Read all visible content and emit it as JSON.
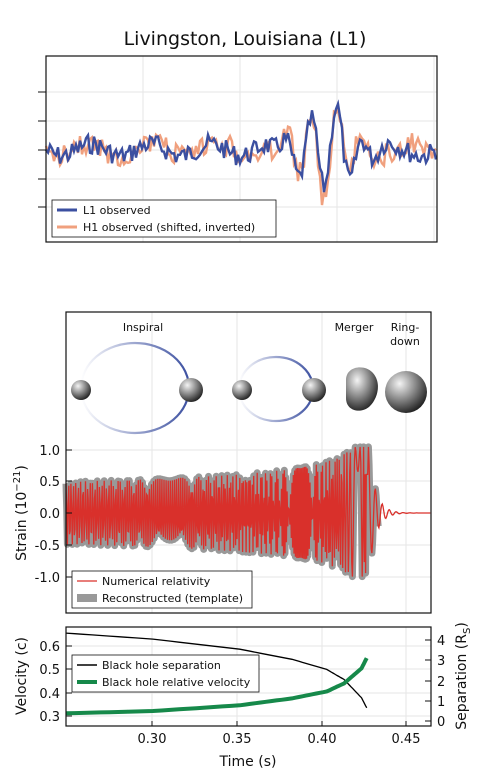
{
  "top_panel": {
    "title": "Livingston, Louisiana (L1)",
    "legend": [
      "L1 observed",
      "H1 observed (shifted, inverted)"
    ]
  },
  "middle_panel": {
    "phase_labels": {
      "inspiral": "Inspiral",
      "merger": "Merger",
      "ringdown_1": "Ring-",
      "ringdown_2": "down"
    },
    "ylabel_main": "Strain (10",
    "ylabel_exp": "−21",
    "ylabel_end": ")",
    "yticks": [
      "1.0",
      "0.5",
      "0.0",
      "-0.5",
      "-1.0"
    ],
    "legend": [
      "Numerical relativity",
      "Reconstructed (template)"
    ]
  },
  "bottom_panel": {
    "ylabel_left": "Velocity (c)",
    "ylabel_right_main": "Separation (R",
    "ylabel_right_sub": "S",
    "ylabel_right_end": ")",
    "yticks_left": [
      "0.6",
      "0.5",
      "0.4",
      "0.3"
    ],
    "yticks_right": [
      "4",
      "3",
      "2",
      "1",
      "0"
    ],
    "xticks": [
      "0.30",
      "0.35",
      "0.40",
      "0.45"
    ],
    "xlabel": "Time (s)",
    "legend": [
      "Black hole separation",
      "Black hole relative velocity"
    ]
  },
  "colors": {
    "l1": "#3b4fa0",
    "h1": "#f0a07e",
    "nr": "#d9302b",
    "template": "#999999",
    "velocity": "#16894a",
    "separation": "#000000"
  },
  "chart_data": [
    {
      "type": "line",
      "title": "Livingston, Louisiana (L1)",
      "series": [
        {
          "name": "L1 observed"
        },
        {
          "name": "H1 observed (shifted, inverted)"
        }
      ]
    },
    {
      "type": "line",
      "xlim": [
        0.25,
        0.46
      ],
      "ylim": [
        -1.5,
        1.5
      ],
      "ylabel": "Strain (10^-21)",
      "series": [
        {
          "name": "Numerical relativity"
        },
        {
          "name": "Reconstructed (template)"
        }
      ]
    },
    {
      "type": "line",
      "xlabel": "Time (s)",
      "xlim": [
        0.25,
        0.46
      ],
      "ylim_left": [
        0.27,
        0.7
      ],
      "ylim_right": [
        0,
        4.9
      ],
      "series": [
        {
          "name": "Black hole separation",
          "axis": "right",
          "x": [
            0.25,
            0.3,
            0.35,
            0.38,
            0.4,
            0.41,
            0.42,
            0.423
          ],
          "y": [
            4.6,
            4.3,
            3.8,
            3.3,
            2.8,
            2.3,
            1.4,
            0.9
          ]
        },
        {
          "name": "Black hole relative velocity",
          "axis": "left",
          "x": [
            0.25,
            0.3,
            0.35,
            0.38,
            0.4,
            0.41,
            0.42,
            0.423
          ],
          "y": [
            0.325,
            0.335,
            0.36,
            0.39,
            0.42,
            0.455,
            0.52,
            0.565
          ]
        }
      ]
    }
  ]
}
